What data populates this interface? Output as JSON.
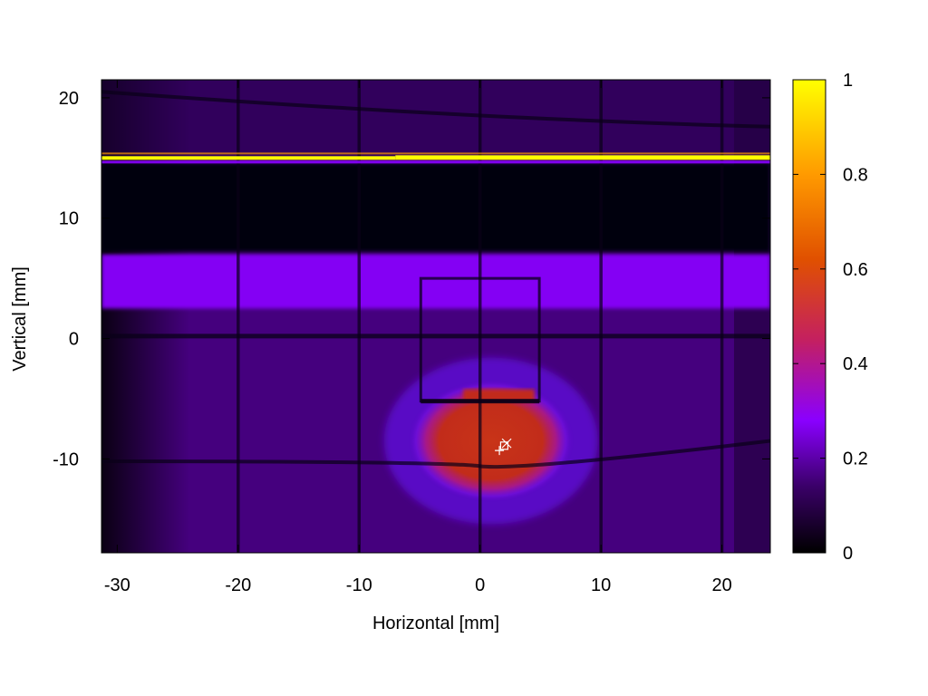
{
  "chart_data": {
    "type": "heatmap",
    "xlabel": "Horizontal [mm]",
    "ylabel": "Vertical [mm]",
    "xlim": [
      -31.3,
      24.0
    ],
    "ylim": [
      -17.8,
      21.5
    ],
    "x_ticks": [
      {
        "value": -30,
        "label": "-30"
      },
      {
        "value": -20,
        "label": "-20"
      },
      {
        "value": -10,
        "label": "-10"
      },
      {
        "value": 0,
        "label": "0"
      },
      {
        "value": 10,
        "label": "10"
      },
      {
        "value": 20,
        "label": "20"
      }
    ],
    "y_ticks": [
      {
        "value": 20,
        "label": "20"
      },
      {
        "value": 10,
        "label": "10"
      },
      {
        "value": 0,
        "label": "0"
      },
      {
        "value": -10,
        "label": "-10"
      }
    ],
    "colorbar": {
      "range": [
        0,
        1
      ],
      "ticks": [
        {
          "value": 0,
          "label": "0"
        },
        {
          "value": 0.2,
          "label": "0.2"
        },
        {
          "value": 0.4,
          "label": "0.4"
        },
        {
          "value": 0.6,
          "label": "0.6"
        },
        {
          "value": 0.8,
          "label": "0.8"
        },
        {
          "value": 1,
          "label": "1"
        }
      ],
      "colormap": [
        "#000000",
        "#3a0068",
        "#8a00ff",
        "#c42060",
        "#e05000",
        "#ff9a00",
        "#ffff00"
      ]
    },
    "features": {
      "bright_line": {
        "y": 15.0,
        "intensity": 1.0
      },
      "dark_band": {
        "y_range": [
          7.2,
          14.6
        ],
        "intensity": 0.01
      },
      "purple_band": {
        "y_range": [
          2.5,
          7.0
        ],
        "intensity": 0.27
      },
      "background_level": 0.16,
      "beam_spot": {
        "center_x": 1.8,
        "center_y": -8.5,
        "intensity": 0.5
      },
      "grid_lines_x": [
        -20,
        -10,
        0,
        10,
        20
      ],
      "grid_lines_y": [
        0,
        -10
      ]
    },
    "markers": [
      {
        "symbol": "+",
        "x": 1.6,
        "y": -9.3
      },
      {
        "symbol": "square",
        "x": 2.0,
        "y": -8.9
      },
      {
        "symbol": "x",
        "x": 2.2,
        "y": -8.7
      }
    ],
    "grid": false
  }
}
